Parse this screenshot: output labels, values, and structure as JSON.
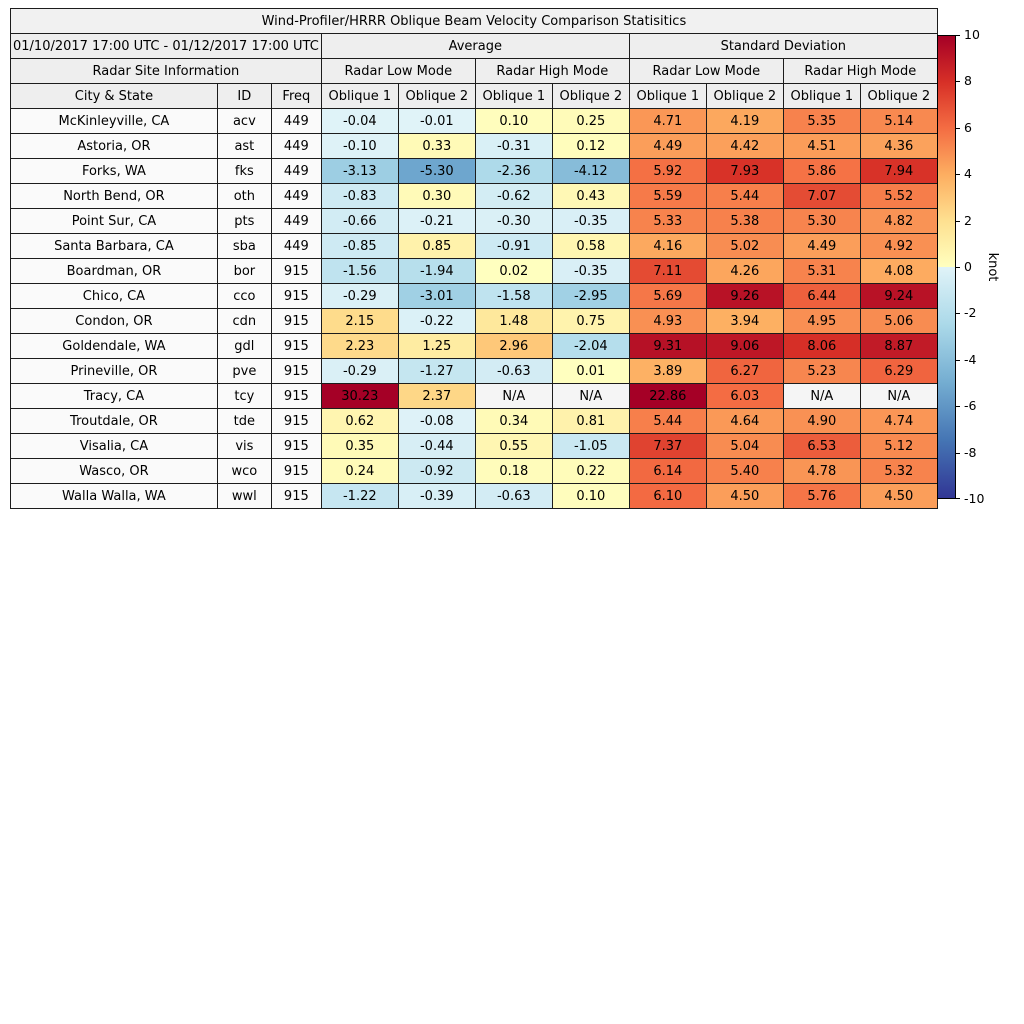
{
  "chart_data": {
    "type": "table",
    "title": "Wind-Profiler/HRRR Oblique Beam Velocity Comparison Statisitics",
    "period": "01/10/2017 17:00 UTC - 01/12/2017 17:00 UTC",
    "site_info_label": "Radar Site Information",
    "column_groups": [
      "Average",
      "Standard Deviation"
    ],
    "mode_groups": [
      "Radar Low Mode",
      "Radar High Mode",
      "Radar Low Mode",
      "Radar High Mode"
    ],
    "columns": [
      "City & State",
      "ID",
      "Freq",
      "Oblique 1",
      "Oblique 2",
      "Oblique 1",
      "Oblique 2",
      "Oblique 1",
      "Oblique 2",
      "Oblique 1",
      "Oblique 2"
    ],
    "na_text": "N/A",
    "rows": [
      {
        "city": "McKinleyville, CA",
        "id": "acv",
        "freq": "449",
        "values": [
          -0.04,
          -0.01,
          0.1,
          0.25,
          4.71,
          4.19,
          5.35,
          5.14
        ]
      },
      {
        "city": "Astoria, OR",
        "id": "ast",
        "freq": "449",
        "values": [
          -0.1,
          0.33,
          -0.31,
          0.12,
          4.49,
          4.42,
          4.51,
          4.36
        ]
      },
      {
        "city": "Forks, WA",
        "id": "fks",
        "freq": "449",
        "values": [
          -3.13,
          -5.3,
          -2.36,
          -4.12,
          5.92,
          7.93,
          5.86,
          7.94
        ]
      },
      {
        "city": "North Bend, OR",
        "id": "oth",
        "freq": "449",
        "values": [
          -0.83,
          0.3,
          -0.62,
          0.43,
          5.59,
          5.44,
          7.07,
          5.52
        ]
      },
      {
        "city": "Point Sur, CA",
        "id": "pts",
        "freq": "449",
        "values": [
          -0.66,
          -0.21,
          -0.3,
          -0.35,
          5.33,
          5.38,
          5.3,
          4.82
        ]
      },
      {
        "city": "Santa Barbara, CA",
        "id": "sba",
        "freq": "449",
        "values": [
          -0.85,
          0.85,
          -0.91,
          0.58,
          4.16,
          5.02,
          4.49,
          4.92
        ]
      },
      {
        "city": "Boardman, OR",
        "id": "bor",
        "freq": "915",
        "values": [
          -1.56,
          -1.94,
          0.02,
          -0.35,
          7.11,
          4.26,
          5.31,
          4.08
        ]
      },
      {
        "city": "Chico, CA",
        "id": "cco",
        "freq": "915",
        "values": [
          -0.29,
          -3.01,
          -1.58,
          -2.95,
          5.69,
          9.26,
          6.44,
          9.24
        ]
      },
      {
        "city": "Condon, OR",
        "id": "cdn",
        "freq": "915",
        "values": [
          2.15,
          -0.22,
          1.48,
          0.75,
          4.93,
          3.94,
          4.95,
          5.06
        ]
      },
      {
        "city": "Goldendale, WA",
        "id": "gdl",
        "freq": "915",
        "values": [
          2.23,
          1.25,
          2.96,
          -2.04,
          9.31,
          9.06,
          8.06,
          8.87
        ]
      },
      {
        "city": "Prineville, OR",
        "id": "pve",
        "freq": "915",
        "values": [
          -0.29,
          -1.27,
          -0.63,
          0.01,
          3.89,
          6.27,
          5.23,
          6.29
        ]
      },
      {
        "city": "Tracy, CA",
        "id": "tcy",
        "freq": "915",
        "values": [
          30.23,
          2.37,
          null,
          null,
          22.86,
          6.03,
          null,
          null
        ]
      },
      {
        "city": "Troutdale, OR",
        "id": "tde",
        "freq": "915",
        "values": [
          0.62,
          -0.08,
          0.34,
          0.81,
          5.44,
          4.64,
          4.9,
          4.74
        ]
      },
      {
        "city": "Visalia, CA",
        "id": "vis",
        "freq": "915",
        "values": [
          0.35,
          -0.44,
          0.55,
          -1.05,
          7.37,
          5.04,
          6.53,
          5.12
        ]
      },
      {
        "city": "Wasco, OR",
        "id": "wco",
        "freq": "915",
        "values": [
          0.24,
          -0.92,
          0.18,
          0.22,
          6.14,
          5.4,
          4.78,
          5.32
        ]
      },
      {
        "city": "Walla Walla, WA",
        "id": "wwl",
        "freq": "915",
        "values": [
          -1.22,
          -0.39,
          -0.63,
          0.1,
          6.1,
          4.5,
          5.76,
          4.5
        ]
      }
    ],
    "colorbar": {
      "label": "knot",
      "min": -10,
      "max": 10,
      "ticks": [
        10,
        8,
        6,
        4,
        2,
        0,
        -2,
        -4,
        -6,
        -8,
        -10
      ]
    },
    "colormap": {
      "positive": [
        [
          0,
          "#ffffbf"
        ],
        [
          2,
          "#fee090"
        ],
        [
          4,
          "#fdae61"
        ],
        [
          6,
          "#f46d43"
        ],
        [
          8,
          "#d73027"
        ],
        [
          10,
          "#a50026"
        ]
      ],
      "negative": [
        [
          0,
          "#e0f3f8"
        ],
        [
          2.5,
          "#abd9e9"
        ],
        [
          5,
          "#74add1"
        ],
        [
          7.5,
          "#4575b4"
        ],
        [
          10,
          "#313695"
        ]
      ],
      "na_background": "#f5f5f5"
    }
  }
}
